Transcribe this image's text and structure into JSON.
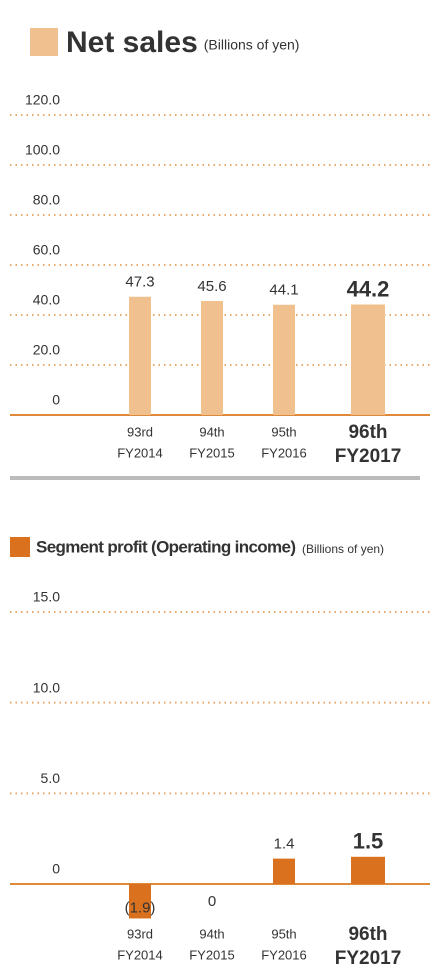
{
  "chart_data": [
    {
      "type": "bar",
      "title": "Net sales",
      "subtitle": "(Billions of yen)",
      "categories": [
        [
          "93rd",
          "FY2014"
        ],
        [
          "94th",
          "FY2015"
        ],
        [
          "95th",
          "FY2016"
        ],
        [
          "96th",
          "FY2017"
        ]
      ],
      "values": [
        47.3,
        45.6,
        44.1,
        44.2
      ],
      "color": "#f1c08f",
      "highlight": 3,
      "ylim": [
        0,
        120
      ],
      "yticks": [
        0,
        {
          "value": 20,
          "label": "20.0"
        },
        {
          "value": 40,
          "label": "40.0"
        },
        {
          "value": 60,
          "label": "60.0"
        },
        {
          "value": 80,
          "label": "80.0"
        },
        {
          "value": 100,
          "label": "100.0"
        },
        {
          "value": 120,
          "label": "120.0"
        }
      ],
      "grid": true
    },
    {
      "type": "bar",
      "title": "Segment profit (Operating income)",
      "subtitle": "(Billions of yen)",
      "categories": [
        [
          "93rd",
          "FY2014"
        ],
        [
          "94th",
          "FY2015"
        ],
        [
          "95th",
          "FY2016"
        ],
        [
          "96th",
          "FY2017"
        ]
      ],
      "values": [
        -1.9,
        0,
        1.4,
        1.5
      ],
      "value_labels": [
        "(1.9)",
        "0",
        "1.4",
        "1.5"
      ],
      "color": "#d9711f",
      "highlight": 3,
      "ylim": [
        0,
        15
      ],
      "yticks": [
        0,
        {
          "value": 5,
          "label": "5.0"
        },
        {
          "value": 10,
          "label": "10.0"
        },
        {
          "value": 15,
          "label": "15.0"
        }
      ],
      "grid": true
    }
  ]
}
